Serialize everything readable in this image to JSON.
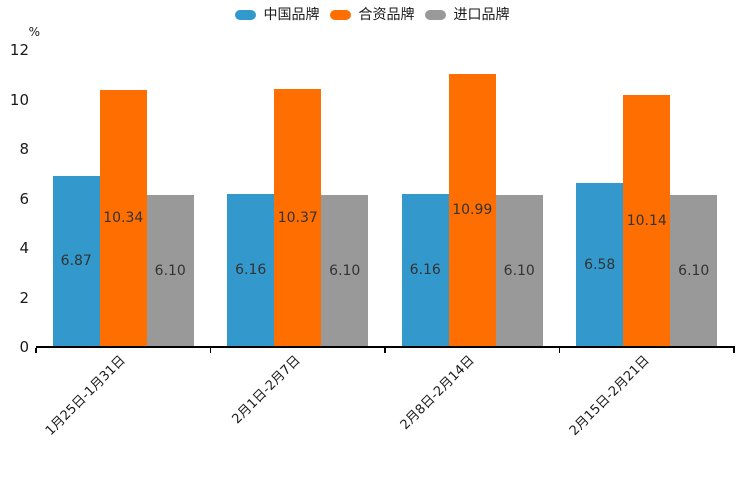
{
  "chart_data": {
    "type": "bar",
    "title": "",
    "unit": "%",
    "categories": [
      "1月25日-1月31日",
      "2月1日-2月7日",
      "2月8日-2月14日",
      "2月15日-2月21日"
    ],
    "series": [
      {
        "name": "中国品牌",
        "color": "#3399CC",
        "values": [
          6.87,
          6.16,
          6.16,
          6.58
        ]
      },
      {
        "name": "合资品牌",
        "color": "#FF6E00",
        "values": [
          10.34,
          10.37,
          10.99,
          10.14
        ]
      },
      {
        "name": "进口品牌",
        "color": "#999999",
        "values": [
          6.1,
          6.1,
          6.1,
          6.1
        ]
      }
    ],
    "value_labels": [
      [
        "6.87",
        "6.16",
        "6.16",
        "6.58"
      ],
      [
        "10.34",
        "10.37",
        "10.99",
        "10.14"
      ],
      [
        "6.10",
        "6.10",
        "6.10",
        "6.10"
      ]
    ],
    "ylim": [
      0,
      12
    ],
    "yticks": [
      0,
      2,
      4,
      6,
      8,
      10,
      12
    ],
    "grid": false,
    "legend_position": "top",
    "value_label_position": "inside-center",
    "text_color": "#1a1a1a",
    "value_label_color": "#333333",
    "axis_color": "#000000",
    "background_color": "#ffffff"
  }
}
